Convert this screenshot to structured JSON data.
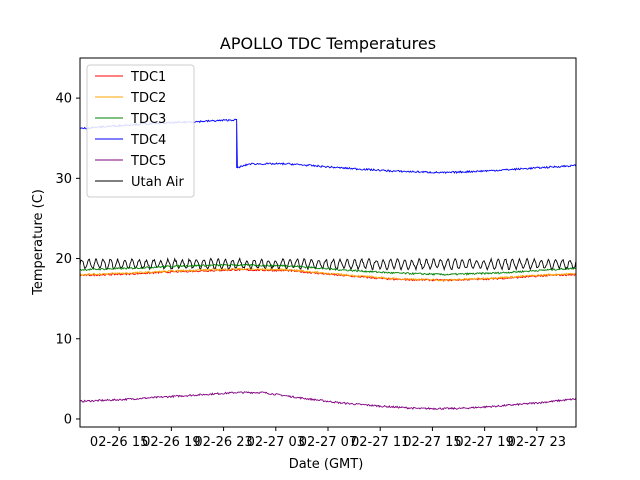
{
  "chart_data": {
    "type": "line",
    "title": "APOLLO TDC Temperatures",
    "xlabel": "Date (GMT)",
    "ylabel": "Temperature (C)",
    "ylim": [
      -1,
      45
    ],
    "yticks": [
      0,
      10,
      20,
      30,
      40
    ],
    "xlim": [
      0,
      38
    ],
    "xticks": [
      {
        "t": 3,
        "label": "02-26 15"
      },
      {
        "t": 7,
        "label": "02-26 19"
      },
      {
        "t": 11,
        "label": "02-26 23"
      },
      {
        "t": 15,
        "label": "02-27 03"
      },
      {
        "t": 19,
        "label": "02-27 07"
      },
      {
        "t": 23,
        "label": "02-27 11"
      },
      {
        "t": 27,
        "label": "02-27 15"
      },
      {
        "t": 31,
        "label": "02-27 19"
      },
      {
        "t": 35,
        "label": "02-27 23"
      }
    ],
    "legend_position": "top-left",
    "series": [
      {
        "name": "TDC1",
        "color": "#ff0000",
        "x": [
          0,
          4,
          8,
          12,
          16,
          20,
          24,
          28,
          32,
          36,
          38
        ],
        "y": [
          17.9,
          18.1,
          18.4,
          18.6,
          18.5,
          17.9,
          17.4,
          17.3,
          17.5,
          17.9,
          18.0
        ]
      },
      {
        "name": "TDC2",
        "color": "#ffa500",
        "x": [
          0,
          4,
          8,
          12,
          16,
          20,
          24,
          28,
          32,
          36,
          38
        ],
        "y": [
          18.0,
          18.2,
          18.5,
          18.7,
          18.6,
          18.0,
          17.5,
          17.3,
          17.6,
          18.0,
          18.1
        ]
      },
      {
        "name": "TDC3",
        "color": "#008000",
        "x": [
          0,
          4,
          8,
          12,
          16,
          20,
          24,
          28,
          32,
          36,
          38
        ],
        "y": [
          18.6,
          18.8,
          19.1,
          19.2,
          19.1,
          18.6,
          18.2,
          18.0,
          18.2,
          18.6,
          18.8
        ]
      },
      {
        "name": "TDC4",
        "color": "#0000ff",
        "x": [
          0,
          4,
          8,
          12,
          12.01,
          13,
          16,
          20,
          24,
          28,
          32,
          36,
          38
        ],
        "y": [
          36.2,
          36.7,
          37.0,
          37.3,
          31.3,
          31.8,
          31.8,
          31.3,
          30.9,
          30.7,
          31.0,
          31.4,
          31.6
        ]
      },
      {
        "name": "TDC5",
        "color": "#800080",
        "x": [
          0,
          3,
          6,
          9,
          12,
          14,
          17,
          20,
          23,
          26,
          29,
          32,
          35,
          38
        ],
        "y": [
          2.2,
          2.4,
          2.7,
          3.0,
          3.3,
          3.3,
          2.6,
          2.0,
          1.6,
          1.3,
          1.3,
          1.6,
          2.0,
          2.5
        ]
      },
      {
        "name": "Utah Air",
        "color": "#000000",
        "x": [
          0,
          38
        ],
        "y": [
          19.3,
          19.3
        ],
        "oscillation": 0.55
      }
    ]
  }
}
